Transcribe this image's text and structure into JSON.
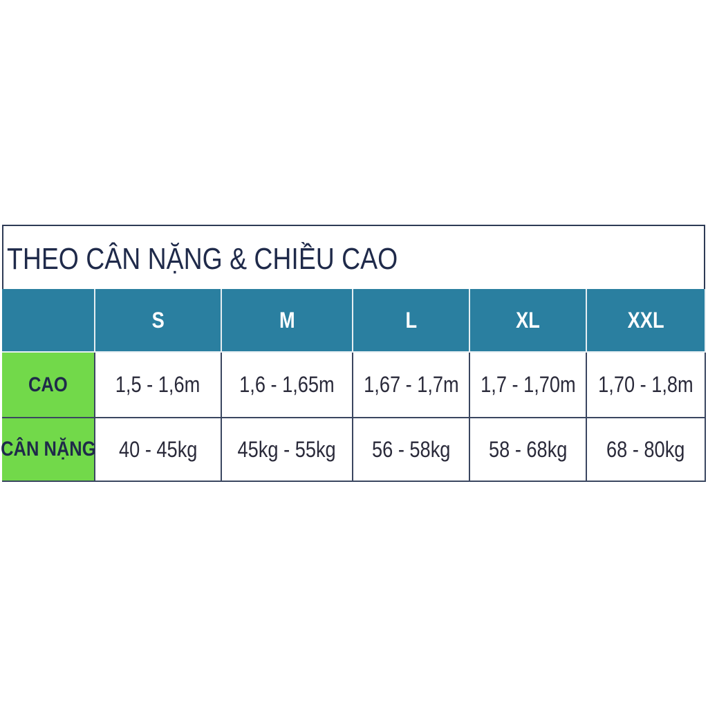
{
  "title": "THEO CÂN NẶNG & CHIỀU CAO",
  "table": {
    "sizes": [
      "S",
      "M",
      "L",
      "XL",
      "XXL"
    ],
    "rows": [
      {
        "label": "CAO",
        "cells": [
          "1,5 - 1,6m",
          "1,6 - 1,65m",
          "1,67 - 1,7m",
          "1,7 - 1,70m",
          "1,70 - 1,8m"
        ]
      },
      {
        "label": "CÂN NẶNG",
        "cells": [
          "40 - 45kg",
          "45kg - 55kg",
          "56 - 58kg",
          "58 - 68kg",
          "68 - 80kg"
        ]
      }
    ]
  }
}
